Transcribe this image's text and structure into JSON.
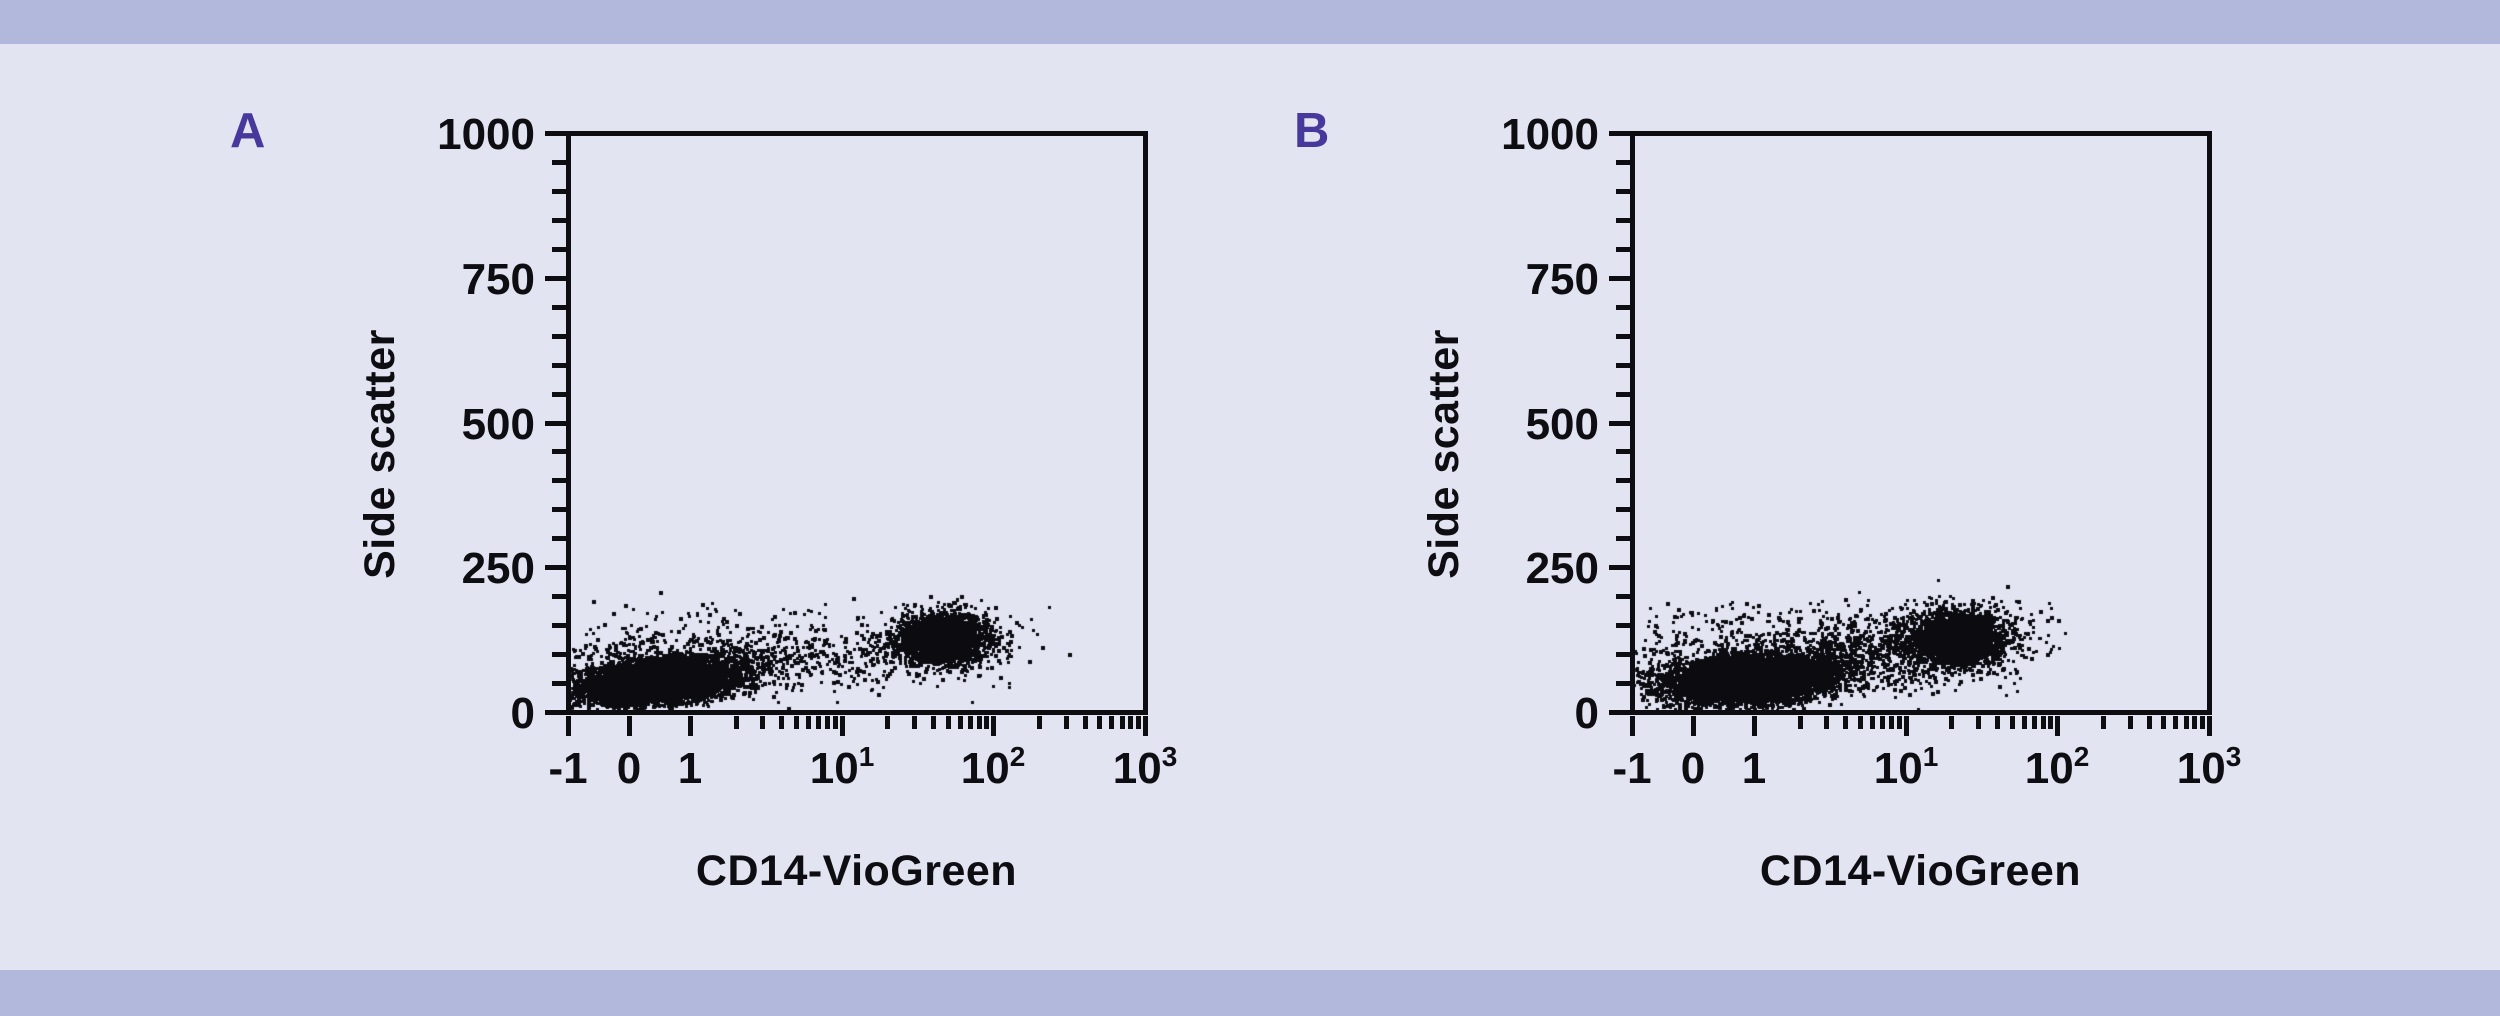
{
  "figure": {
    "background_color": "#e2e4f2",
    "band_color": "#b2b8db",
    "accent_color": "#46399b",
    "axis_color": "#0d0d12"
  },
  "chart_data": [
    {
      "type": "scatter",
      "panel_label": "A",
      "xlabel": "CD14-VioGreen",
      "ylabel": "Side scatter",
      "x_scale": "biexponential",
      "x_linear_range": [
        -1,
        1
      ],
      "x_log_range": [
        1,
        1000
      ],
      "x_tick_values": [
        -1,
        0,
        1,
        10,
        100,
        1000
      ],
      "x_tick_labels": [
        "-1",
        "0",
        "1",
        "10^1",
        "10^2",
        "10^3"
      ],
      "y_ticks": [
        0,
        250,
        500,
        750,
        1000
      ],
      "y_tick_labels": [
        "0",
        "250",
        "500",
        "750",
        "1000"
      ],
      "y_minor_step": 50,
      "ylim": [
        0,
        1000
      ],
      "grid": false,
      "legend": null,
      "point_color": "#0b0b10",
      "seed": 1042,
      "clusters": [
        {
          "name": "cd14-negative core",
          "n": 7000,
          "x_center": 0.45,
          "x_sigma_units": 0.59,
          "y_center": 55,
          "y_sigma": 17,
          "y_tilt_per_unit": 9
        },
        {
          "name": "cd14-negative halo",
          "n": 800,
          "x_center": 0.6,
          "x_sigma_units": 1.15,
          "y_center": 80,
          "y_sigma": 30,
          "y_tilt_per_unit": 8
        },
        {
          "name": "bridge events",
          "n": 270,
          "x_log_span": [
            1.9,
            22
          ],
          "y_center": 92,
          "y_sigma": 26
        },
        {
          "name": "monocyte core CD14+",
          "n": 2600,
          "x_center": 46,
          "x_sigma_units": 0.33,
          "y_center": 128,
          "y_sigma": 20
        },
        {
          "name": "monocyte halo",
          "n": 420,
          "x_center": 44,
          "x_sigma_units": 0.62,
          "y_center": 125,
          "y_sigma": 32
        },
        {
          "name": "high side-scatter outliers",
          "n": 95,
          "x_span": [
            -0.85,
            8
          ],
          "y_center": 150,
          "y_sigma": 25
        }
      ]
    },
    {
      "type": "scatter",
      "panel_label": "B",
      "xlabel": "CD14-VioGreen",
      "ylabel": "Side scatter",
      "x_scale": "biexponential",
      "x_linear_range": [
        -1,
        1
      ],
      "x_log_range": [
        1,
        1000
      ],
      "x_tick_values": [
        -1,
        0,
        1,
        10,
        100,
        1000
      ],
      "x_tick_labels": [
        "-1",
        "0",
        "1",
        "10^1",
        "10^2",
        "10^3"
      ],
      "y_ticks": [
        0,
        250,
        500,
        750,
        1000
      ],
      "y_tick_labels": [
        "0",
        "250",
        "500",
        "750",
        "1000"
      ],
      "y_minor_step": 50,
      "ylim": [
        0,
        1000
      ],
      "grid": false,
      "legend": null,
      "point_color": "#0b0b10",
      "seed": 77031,
      "clusters": [
        {
          "name": "cd14-negative core",
          "n": 7000,
          "x_center": 0.97,
          "x_sigma_units": 0.62,
          "y_center": 58,
          "y_sigma": 19,
          "y_tilt_per_unit": 8
        },
        {
          "name": "cd14-negative halo",
          "n": 1100,
          "x_center": 1.1,
          "x_sigma_units": 1.25,
          "y_center": 82,
          "y_sigma": 33,
          "y_tilt_per_unit": 6
        },
        {
          "name": "bridge events",
          "n": 380,
          "x_log_span": [
            2.6,
            16
          ],
          "y_center": 102,
          "y_sigma": 30
        },
        {
          "name": "monocyte core CD14+",
          "n": 2300,
          "x_center": 22,
          "x_sigma_units": 0.36,
          "y_center": 130,
          "y_sigma": 21
        },
        {
          "name": "monocyte halo",
          "n": 560,
          "x_center": 23,
          "x_sigma_units": 0.68,
          "y_center": 127,
          "y_sigma": 33
        },
        {
          "name": "high side-scatter outliers",
          "n": 120,
          "x_span": [
            -0.85,
            9
          ],
          "y_center": 152,
          "y_sigma": 22
        }
      ]
    }
  ]
}
